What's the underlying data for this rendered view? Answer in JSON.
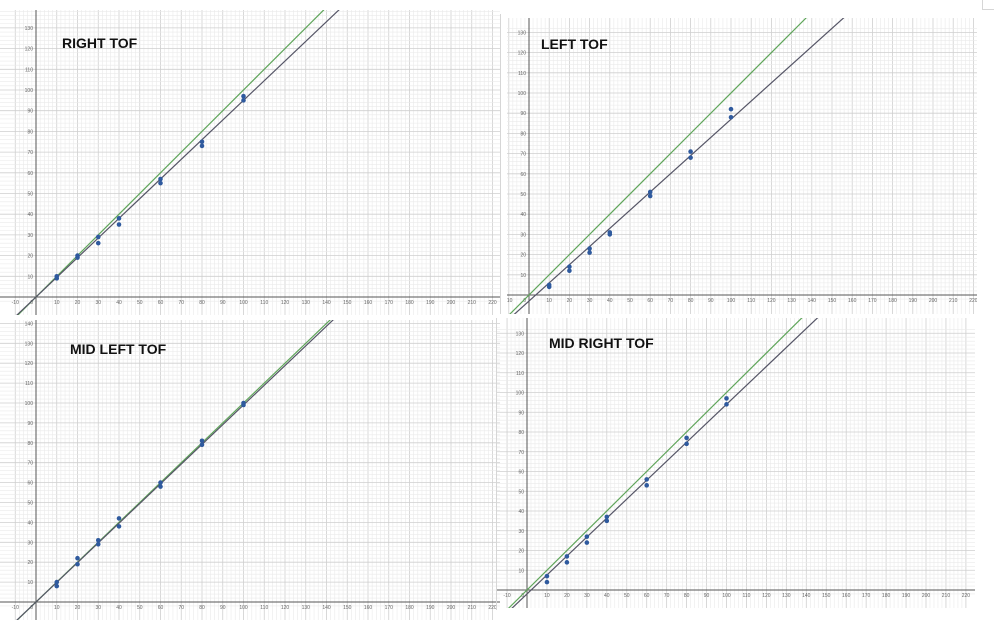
{
  "colors": {
    "reference_line": "#5fa55a",
    "fit_line": "#555566",
    "points": "#2f5a9e",
    "axis": "#555555",
    "grid_major": "#cfcfcf",
    "grid_minor": "#eaeaea"
  },
  "chart_data": [
    {
      "type": "scatter",
      "title": "RIGHT TOF",
      "xlim": [
        -10,
        220
      ],
      "ylim": [
        -2,
        145
      ],
      "x_ticks": [
        -10,
        10,
        20,
        30,
        40,
        50,
        60,
        70,
        80,
        90,
        100,
        110,
        120,
        130,
        140,
        150,
        160,
        170,
        180,
        190,
        200,
        210,
        220
      ],
      "y_ticks": [
        10,
        20,
        30,
        40,
        50,
        60,
        70,
        80,
        90,
        100,
        110,
        120,
        130,
        140
      ],
      "origin_label": "0",
      "grid": true,
      "series": [
        {
          "kind": "points",
          "x": [
            10,
            10,
            20,
            20,
            30,
            30,
            40,
            40,
            60,
            60,
            80,
            80,
            100,
            100
          ],
          "y": [
            9,
            10,
            19,
            20,
            26,
            29,
            35,
            38,
            55,
            57,
            73,
            75,
            95,
            97
          ]
        },
        {
          "kind": "line",
          "color": "green",
          "slope": 1.0,
          "intercept": 0
        },
        {
          "kind": "line",
          "color": "dark",
          "slope": 0.95,
          "intercept": 0
        }
      ]
    },
    {
      "type": "scatter",
      "title": "LEFT TOF",
      "xlim": [
        -10,
        220
      ],
      "ylim": [
        -2,
        132
      ],
      "x_ticks": [
        -10,
        10,
        20,
        30,
        40,
        50,
        60,
        70,
        80,
        90,
        100,
        110,
        120,
        130,
        140,
        150,
        160,
        170,
        180,
        190,
        200,
        210,
        220
      ],
      "y_ticks": [
        10,
        20,
        30,
        40,
        50,
        60,
        70,
        80,
        90,
        100,
        110,
        120,
        130
      ],
      "origin_label": "0",
      "grid": true,
      "series": [
        {
          "kind": "points",
          "x": [
            10,
            10,
            20,
            20,
            30,
            30,
            40,
            40,
            60,
            60,
            80,
            80,
            100,
            100
          ],
          "y": [
            4,
            5,
            12,
            14,
            21,
            23,
            30,
            31,
            49,
            51,
            68,
            71,
            88,
            92
          ]
        },
        {
          "kind": "line",
          "color": "green",
          "slope": 1.0,
          "intercept": 0
        },
        {
          "kind": "line",
          "color": "dark",
          "slope": 0.9,
          "intercept": -3
        }
      ]
    },
    {
      "type": "scatter",
      "title": "MID LEFT TOF",
      "xlim": [
        -10,
        220
      ],
      "ylim": [
        -2,
        145
      ],
      "x_ticks": [
        -10,
        10,
        20,
        30,
        40,
        50,
        60,
        70,
        80,
        90,
        100,
        110,
        120,
        130,
        140,
        150,
        160,
        170,
        180,
        190,
        200,
        210,
        220
      ],
      "y_ticks": [
        10,
        20,
        30,
        40,
        50,
        60,
        70,
        80,
        90,
        100,
        110,
        120,
        130,
        140
      ],
      "origin_label": "0",
      "grid": true,
      "series": [
        {
          "kind": "points",
          "x": [
            10,
            10,
            20,
            20,
            30,
            30,
            40,
            40,
            60,
            60,
            80,
            80,
            100,
            100
          ],
          "y": [
            8,
            10,
            19,
            22,
            29,
            31,
            38,
            42,
            58,
            60,
            79,
            81,
            99,
            100
          ]
        },
        {
          "kind": "line",
          "color": "green",
          "slope": 1.0,
          "intercept": 0
        },
        {
          "kind": "line",
          "color": "dark",
          "slope": 0.99,
          "intercept": 0
        }
      ]
    },
    {
      "type": "scatter",
      "title": "MID RIGHT TOF",
      "xlim": [
        -10,
        220
      ],
      "ylim": [
        -2,
        132
      ],
      "x_ticks": [
        -10,
        10,
        20,
        30,
        40,
        50,
        60,
        70,
        80,
        90,
        100,
        110,
        120,
        130,
        140,
        150,
        160,
        170,
        180,
        190,
        200,
        210,
        220
      ],
      "y_ticks": [
        10,
        20,
        30,
        40,
        50,
        60,
        70,
        80,
        90,
        100,
        110,
        120,
        130
      ],
      "origin_label": "0",
      "grid": true,
      "series": [
        {
          "kind": "points",
          "x": [
            10,
            10,
            20,
            20,
            30,
            30,
            40,
            40,
            60,
            60,
            80,
            80,
            100,
            100
          ],
          "y": [
            4,
            7,
            14,
            17,
            24,
            27,
            35,
            37,
            53,
            56,
            74,
            77,
            94,
            97
          ]
        },
        {
          "kind": "line",
          "color": "green",
          "slope": 1.0,
          "intercept": 0
        },
        {
          "kind": "line",
          "color": "dark",
          "slope": 0.96,
          "intercept": -2
        }
      ]
    }
  ]
}
